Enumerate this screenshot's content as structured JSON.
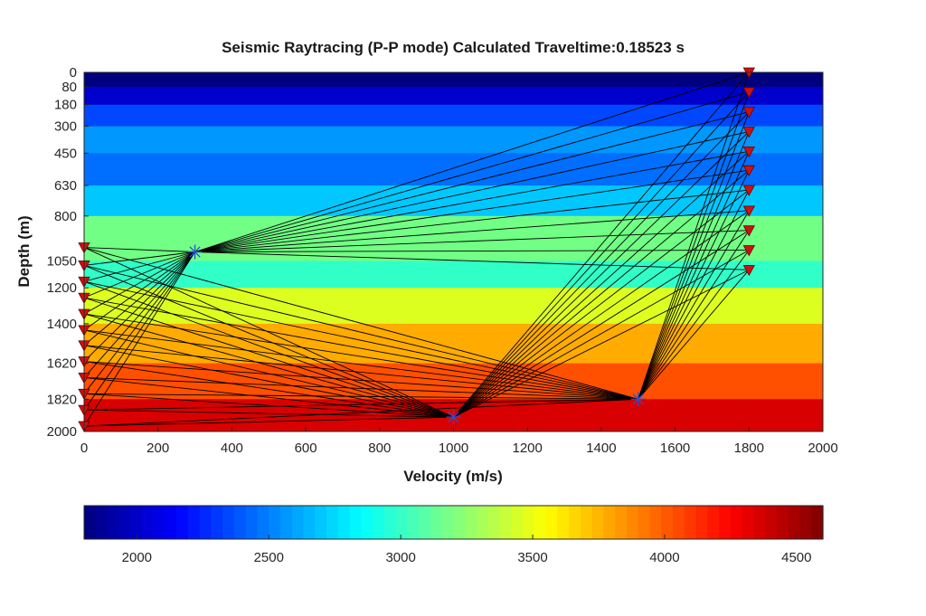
{
  "chart_data": [
    {
      "type": "heatmap",
      "title": "Seismic Raytracing (P-P mode) Calculated Traveltime:0.18523 s",
      "xlabel": "Velocity (m/s)",
      "ylabel": "Depth (m)",
      "xlim": [
        0,
        2000
      ],
      "ylim": [
        0,
        2000
      ],
      "y_reversed": true,
      "x_ticks": [
        "0",
        "200",
        "400",
        "600",
        "800",
        "1000",
        "1200",
        "1400",
        "1600",
        "1800",
        "2000"
      ],
      "y_ticks": [
        "0",
        "80",
        "180",
        "300",
        "450",
        "630",
        "800",
        "1050",
        "1200",
        "1400",
        "1620",
        "1820",
        "2000"
      ],
      "layers": [
        {
          "top": 0,
          "bottom": 80,
          "color": "#00007f"
        },
        {
          "top": 80,
          "bottom": 180,
          "color": "#0000cc"
        },
        {
          "top": 180,
          "bottom": 300,
          "color": "#0047ff"
        },
        {
          "top": 300,
          "bottom": 450,
          "color": "#0097ff"
        },
        {
          "top": 450,
          "bottom": 630,
          "color": "#006fff"
        },
        {
          "top": 630,
          "bottom": 800,
          "color": "#00c8ff"
        },
        {
          "top": 800,
          "bottom": 1050,
          "color": "#72ff85"
        },
        {
          "top": 1050,
          "bottom": 1200,
          "color": "#30ffc8"
        },
        {
          "top": 1200,
          "bottom": 1400,
          "color": "#ddff20"
        },
        {
          "top": 1400,
          "bottom": 1620,
          "color": "#ffab00"
        },
        {
          "top": 1620,
          "bottom": 1820,
          "color": "#ff5000"
        },
        {
          "top": 1820,
          "bottom": 2000,
          "color": "#d80000"
        }
      ],
      "reflection_points": [
        {
          "x": 300,
          "y": 1000
        },
        {
          "x": 1000,
          "y": 1920
        },
        {
          "x": 1500,
          "y": 1820
        }
      ],
      "receivers_left": {
        "x": 0,
        "y": [
          975,
          1075,
          1165,
          1255,
          1345,
          1435,
          1520,
          1610,
          1700,
          1790,
          1880,
          1970
        ]
      },
      "receivers_right": {
        "x": 1800,
        "y": [
          0,
          110,
          220,
          330,
          440,
          545,
          655,
          770,
          880,
          990,
          1100
        ]
      },
      "ray_groups": [
        {
          "from": "receivers_left",
          "via": 0
        },
        {
          "from": "receivers_left",
          "via": 1
        },
        {
          "from": "receivers_left",
          "via": 2
        },
        {
          "from": "receivers_right",
          "via": 0
        },
        {
          "from": "receivers_right",
          "via": 1
        },
        {
          "from": "receivers_right",
          "via": 2
        }
      ],
      "colors": {
        "ray": "#000000",
        "receiver": "#cc1111",
        "receiver_edge": "#6a0000",
        "reflector": "#2a4fd0",
        "axis": "#262626"
      }
    },
    {
      "type": "colorbar",
      "colormap": "jet",
      "range": [
        1800,
        4600
      ],
      "ticks": [
        "2000",
        "2500",
        "3000",
        "3500",
        "4000",
        "4500"
      ],
      "tick_values": [
        2000,
        2500,
        3000,
        3500,
        4000,
        4500
      ],
      "steps": 64
    }
  ]
}
